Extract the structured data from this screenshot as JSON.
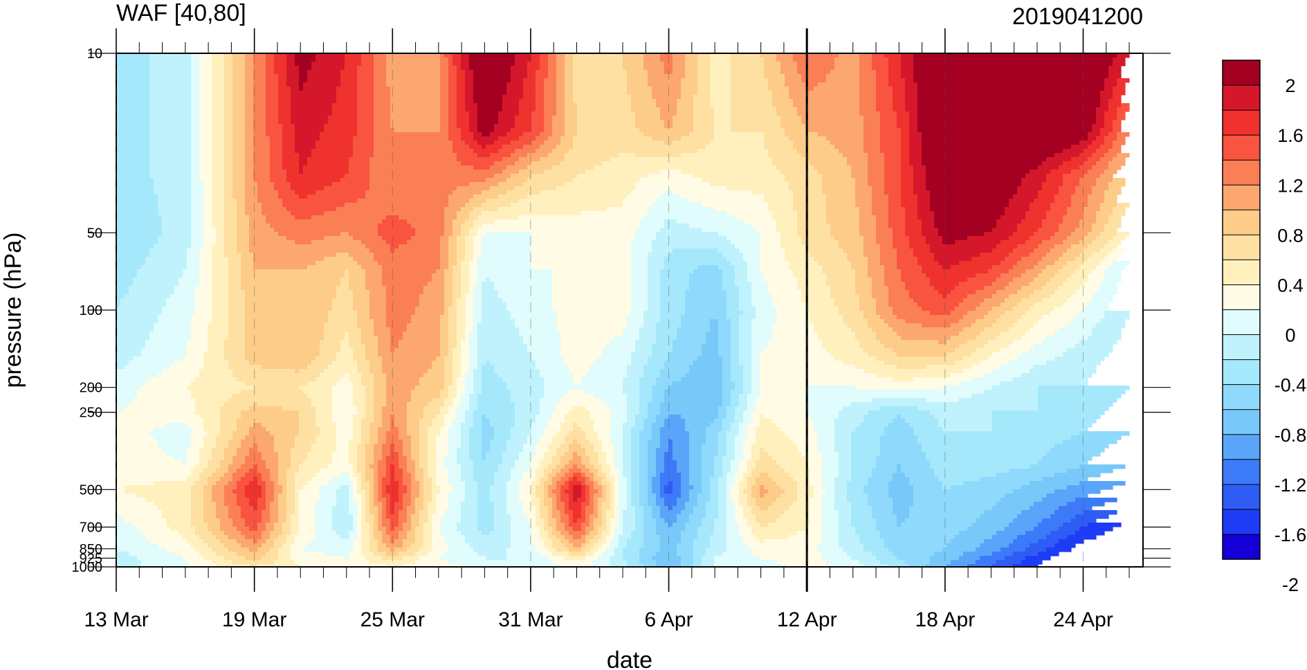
{
  "chart_data": {
    "type": "heatmap",
    "title": "WAF [40,80]",
    "subtitle": "2019041200",
    "xlabel": "date",
    "ylabel": "pressure (hPa)",
    "x_axis": {
      "scale": "time",
      "range": [
        "2019-03-13",
        "2019-04-27"
      ],
      "ticks": [
        "13 Mar",
        "19 Mar",
        "25 Mar",
        "31 Mar",
        "6 Apr",
        "12 Apr",
        "18 Apr",
        "24 Apr"
      ],
      "minor_tick_interval_days": 1,
      "vertical_marker": "12 Apr"
    },
    "y_axis": {
      "scale": "log",
      "inverted": true,
      "range": [
        1000,
        10
      ],
      "ticks": [
        10,
        50,
        100,
        200,
        250,
        500,
        700,
        850,
        925,
        1000
      ],
      "tick_labels": [
        "10",
        "50",
        "100",
        "200",
        "250",
        "500",
        "700",
        "850",
        "925",
        "1000"
      ]
    },
    "x_days": [
      0,
      3,
      6,
      8,
      10,
      12,
      14,
      16,
      18,
      20,
      22,
      24,
      26,
      28,
      30,
      32,
      34,
      36,
      38,
      40,
      42,
      44
    ],
    "x_dates": [
      "13 Mar",
      "16 Mar",
      "19 Mar",
      "21 Mar",
      "23 Mar",
      "25 Mar",
      "27 Mar",
      "29 Mar",
      "31 Mar",
      "2 Apr",
      "4 Apr",
      "6 Apr",
      "8 Apr",
      "10 Apr",
      "12 Apr",
      "14 Apr",
      "16 Apr",
      "18 Apr",
      "20 Apr",
      "22 Apr",
      "24 Apr",
      "26 Apr"
    ],
    "levels_hPa": [
      10,
      20,
      30,
      50,
      70,
      100,
      150,
      200,
      250,
      300,
      400,
      500,
      700,
      850,
      925,
      1000
    ],
    "values": [
      [
        -0.5,
        -0.3,
        1.0,
        1.9,
        1.6,
        0.9,
        1.0,
        2.2,
        1.6,
        0.5,
        0.6,
        1.1,
        0.3,
        0.6,
        1.2,
        0.9,
        1.6,
        2.3,
        2.3,
        2.3,
        2.3,
        1.6
      ],
      [
        -0.5,
        -0.3,
        1.0,
        1.7,
        1.5,
        1.0,
        1.0,
        1.9,
        1.4,
        0.6,
        0.5,
        0.8,
        0.4,
        0.4,
        0.8,
        0.9,
        1.4,
        2.3,
        2.3,
        2.2,
        2.0,
        1.0
      ],
      [
        -0.5,
        -0.3,
        1.0,
        1.6,
        1.4,
        1.0,
        1.1,
        1.1,
        0.6,
        0.4,
        0.3,
        0.1,
        0.3,
        0.3,
        0.5,
        0.8,
        1.4,
        2.1,
        2.1,
        1.7,
        1.2,
        0.6
      ],
      [
        -0.6,
        -0.3,
        0.9,
        1.1,
        1.0,
        1.3,
        1.1,
        0.0,
        0.0,
        0.1,
        0.1,
        -0.3,
        -0.2,
        0.0,
        0.5,
        0.7,
        1.3,
        1.9,
        1.8,
        1.4,
        0.9,
        0.2
      ],
      [
        -0.5,
        -0.2,
        0.8,
        0.8,
        0.6,
        1.1,
        1.0,
        -0.2,
        0.0,
        0.0,
        0.1,
        -0.5,
        -0.7,
        0.0,
        0.3,
        0.6,
        1.2,
        1.6,
        1.4,
        0.9,
        0.3,
        -0.3
      ],
      [
        -0.4,
        -0.1,
        0.7,
        0.8,
        0.5,
        1.1,
        0.9,
        -0.3,
        -0.1,
        0.1,
        0.1,
        -0.5,
        -0.8,
        -0.1,
        0.2,
        0.5,
        1.1,
        1.3,
        0.8,
        0.3,
        0.0,
        -0.4
      ],
      [
        -0.3,
        0.0,
        0.7,
        0.8,
        0.3,
        1.0,
        0.8,
        -0.4,
        -0.2,
        0.1,
        -0.1,
        -0.6,
        -0.9,
        0.0,
        0.1,
        0.3,
        0.6,
        0.6,
        0.2,
        -0.1,
        -0.3,
        -0.5
      ],
      [
        -0.1,
        0.2,
        0.4,
        0.4,
        0.1,
        0.9,
        0.7,
        -0.5,
        -0.3,
        0.0,
        -0.2,
        -0.8,
        -1.0,
        0.0,
        0.0,
        0.0,
        0.1,
        0.0,
        -0.2,
        -0.4,
        -0.4,
        -0.6
      ],
      [
        0.0,
        0.1,
        0.7,
        0.6,
        0.0,
        1.0,
        0.4,
        -0.6,
        -0.3,
        0.3,
        -0.1,
        -1.0,
        -0.9,
        0.2,
        0.0,
        -0.3,
        -0.6,
        -0.3,
        -0.4,
        -0.4,
        -0.5,
        -0.7
      ],
      [
        0.1,
        -0.1,
        0.9,
        0.6,
        0.1,
        1.1,
        0.2,
        -0.7,
        -0.2,
        0.5,
        -0.2,
        -1.2,
        -0.7,
        0.3,
        0.1,
        -0.4,
        -0.7,
        -0.4,
        -0.4,
        -0.5,
        -0.6,
        -0.8
      ],
      [
        0.1,
        0.0,
        1.2,
        0.4,
        0.1,
        1.4,
        0.1,
        -0.6,
        0.0,
        1.0,
        -0.2,
        -1.3,
        -0.6,
        0.5,
        0.2,
        -0.4,
        -0.8,
        -0.5,
        -0.5,
        -0.6,
        -0.8,
        -1.0
      ],
      [
        0.2,
        0.3,
        1.6,
        0.2,
        -0.3,
        1.6,
        0.2,
        -0.5,
        0.2,
        1.8,
        -0.1,
        -1.5,
        -0.5,
        0.9,
        0.3,
        -0.5,
        -0.9,
        -0.6,
        -0.7,
        -0.9,
        -1.1,
        -1.3
      ],
      [
        -0.1,
        0.3,
        1.3,
        0.2,
        -0.4,
        1.3,
        0.0,
        -0.5,
        0.0,
        1.4,
        -0.2,
        -1.0,
        -0.4,
        0.4,
        0.2,
        -0.4,
        -0.8,
        -0.7,
        -0.9,
        -1.2,
        -1.6,
        -1.9
      ],
      [
        -0.2,
        0.1,
        0.9,
        0.0,
        -0.1,
        0.9,
        0.1,
        -0.3,
        -0.1,
        0.8,
        -0.4,
        -0.9,
        -0.3,
        0.1,
        0.1,
        -0.3,
        -0.7,
        -0.8,
        -1.1,
        -1.5,
        -1.9,
        -2.1
      ],
      [
        -0.3,
        0.0,
        0.7,
        0.1,
        0.0,
        0.5,
        0.0,
        -0.2,
        -0.2,
        0.3,
        -0.4,
        -1.0,
        -0.2,
        0.0,
        0.1,
        -0.2,
        -0.6,
        -0.9,
        -1.3,
        -1.7,
        -2.1,
        -2.2
      ],
      [
        -0.3,
        0.0,
        0.4,
        0.2,
        0.1,
        0.2,
        0.1,
        -0.1,
        -0.2,
        0.1,
        -0.3,
        -1.0,
        -0.2,
        -0.1,
        0.1,
        -0.1,
        -0.5,
        -1.0,
        -1.4,
        -1.8,
        -2.2,
        -2.2
      ]
    ],
    "contour_levels": [
      -2,
      -1.8,
      -1.6,
      -1.4,
      -1.2,
      -1,
      -0.8,
      -0.6,
      -0.4,
      -0.2,
      0,
      0.2,
      0.4,
      0.6,
      0.8,
      1,
      1.2,
      1.4,
      1.6,
      1.8,
      2
    ],
    "colorbar": {
      "labels": [
        "2",
        "1.6",
        "1.2",
        "0.8",
        "0.4",
        "0",
        "-0.4",
        "-0.8",
        "-1.2",
        "-1.6",
        "-2"
      ],
      "colors_bottom_to_top": [
        "#1400d6",
        "#1e3cf5",
        "#2e5cf5",
        "#3c7af8",
        "#5aa5fa",
        "#78c8fa",
        "#8fdafc",
        "#a5e8fc",
        "#bff2fc",
        "#e0fcfc",
        "#fffbe4",
        "#fff0be",
        "#fee0a2",
        "#fdcc88",
        "#fca770",
        "#fb7f55",
        "#f8543f",
        "#f0322e",
        "#d5172b",
        "#a40021"
      ]
    },
    "grid": false,
    "legend": "colorbar-right"
  }
}
